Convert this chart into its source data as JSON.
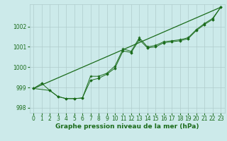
{
  "xlabel": "Graphe pression niveau de la mer (hPa)",
  "bg_color": "#cceaea",
  "grid_color": "#b0cccc",
  "line_color": "#1a6b1a",
  "marker_color": "#1a6b1a",
  "text_color": "#1a6b1a",
  "xlim": [
    -0.5,
    23.5
  ],
  "ylim": [
    997.75,
    1003.1
  ],
  "yticks": [
    998,
    999,
    1000,
    1001,
    1002
  ],
  "xticks": [
    0,
    1,
    2,
    3,
    4,
    5,
    6,
    7,
    8,
    9,
    10,
    11,
    12,
    13,
    14,
    15,
    16,
    17,
    18,
    19,
    20,
    21,
    22,
    23
  ],
  "series1_x": [
    0,
    1,
    2,
    3,
    4,
    5,
    6,
    7,
    8,
    9,
    10,
    11,
    12,
    13,
    14,
    15,
    16,
    17,
    18,
    19,
    20,
    21,
    22,
    23
  ],
  "series1_y": [
    998.95,
    999.2,
    998.85,
    998.55,
    998.45,
    998.45,
    998.48,
    999.35,
    999.45,
    999.65,
    999.95,
    1000.8,
    1000.72,
    1001.35,
    1000.95,
    1001.0,
    1001.2,
    1001.25,
    1001.3,
    1001.4,
    1001.8,
    1002.1,
    1002.35,
    1002.95
  ],
  "series2_x": [
    0,
    2,
    3,
    4,
    5,
    6,
    7,
    8,
    9,
    10,
    11,
    12,
    13,
    14,
    15,
    16,
    17,
    18,
    19,
    20,
    21,
    22,
    23
  ],
  "series2_y": [
    998.95,
    998.85,
    998.55,
    998.45,
    998.45,
    998.48,
    999.55,
    999.55,
    999.7,
    1000.05,
    1000.9,
    1000.78,
    1001.45,
    1001.0,
    1001.07,
    1001.25,
    1001.3,
    1001.35,
    1001.45,
    1001.85,
    1002.15,
    1002.4,
    1002.95
  ],
  "trend_x": [
    0,
    23
  ],
  "trend_y": [
    998.95,
    1002.95
  ],
  "font_size_label": 6.5,
  "font_size_tick": 5.5
}
